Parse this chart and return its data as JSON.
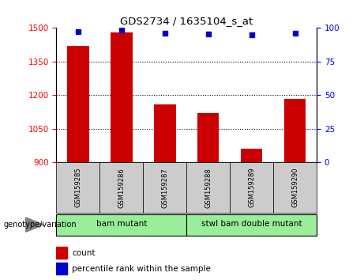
{
  "title": "GDS2734 / 1635104_s_at",
  "samples": [
    "GSM159285",
    "GSM159286",
    "GSM159287",
    "GSM159288",
    "GSM159289",
    "GSM159290"
  ],
  "counts": [
    1420,
    1480,
    1160,
    1120,
    960,
    1185
  ],
  "percentiles": [
    97.5,
    98.5,
    96.0,
    95.5,
    95.0,
    96.0
  ],
  "ylim_left": [
    900,
    1500
  ],
  "ylim_right": [
    0,
    100
  ],
  "yticks_left": [
    900,
    1050,
    1200,
    1350,
    1500
  ],
  "yticks_right": [
    0,
    25,
    50,
    75,
    100
  ],
  "bar_color": "#cc0000",
  "dot_color": "#0000cc",
  "group1_label": "bam mutant",
  "group2_label": "stwl bam double mutant",
  "group1_indices": [
    0,
    1,
    2
  ],
  "group2_indices": [
    3,
    4,
    5
  ],
  "group_bg_color": "#99ee99",
  "sample_bg_color": "#cccccc",
  "legend_count_label": "count",
  "legend_percentile_label": "percentile rank within the sample",
  "genotype_label": "genotype/variation",
  "bar_width": 0.5,
  "baseline": 900
}
